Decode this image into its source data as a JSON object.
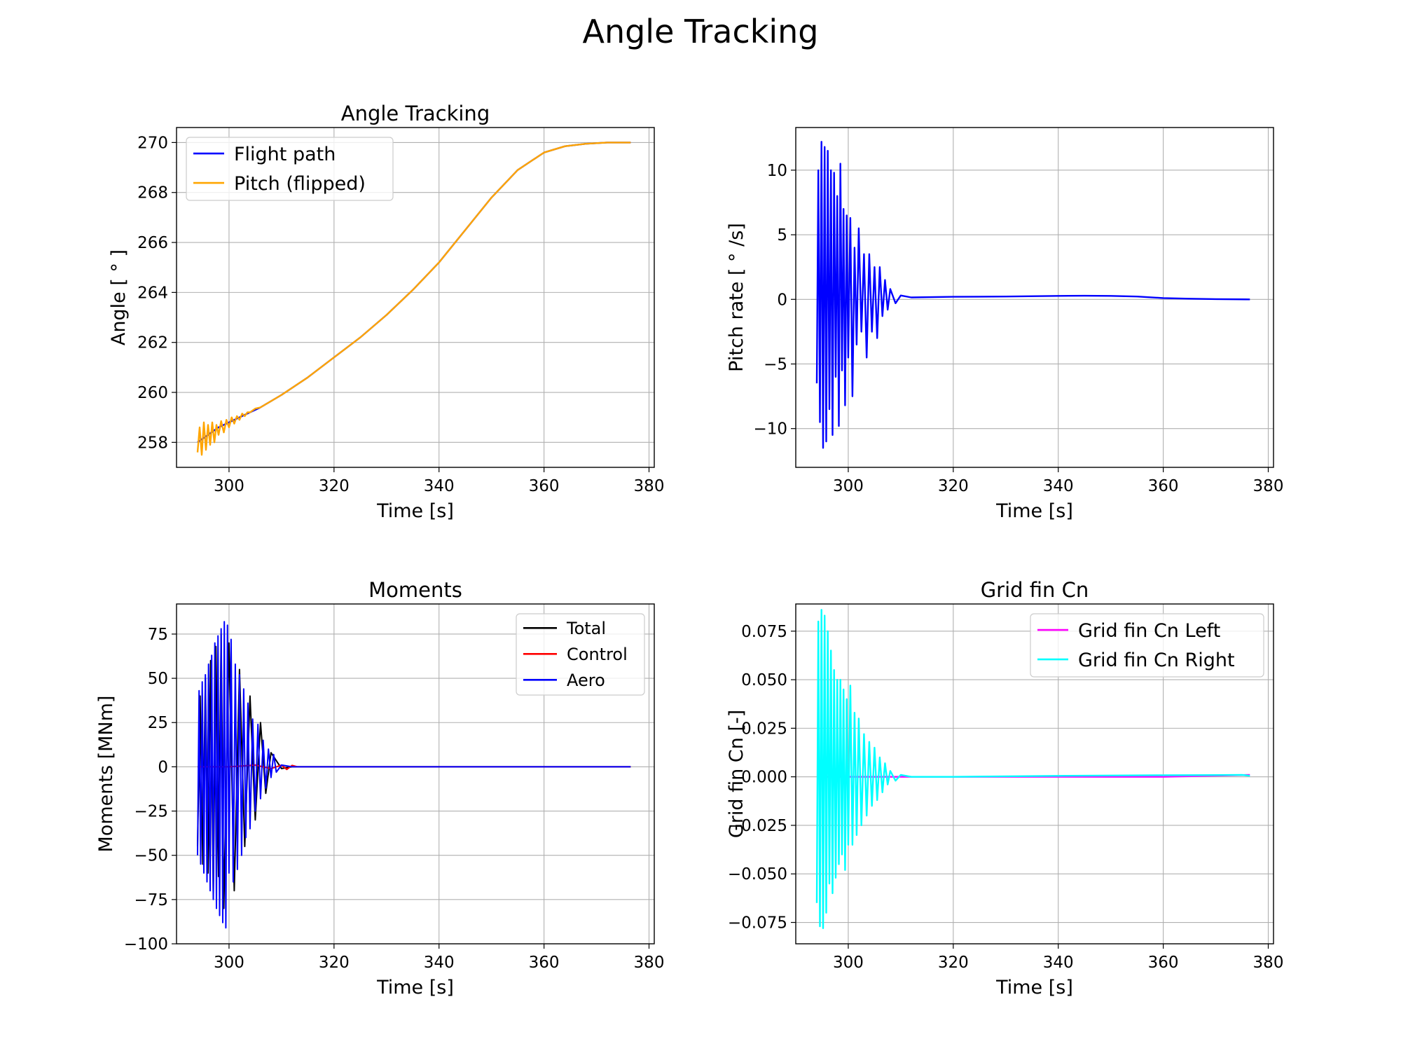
{
  "figure_title": "Angle Tracking",
  "chart_data": [
    {
      "type": "line",
      "title": "Angle Tracking",
      "xlabel": "Time [s]",
      "ylabel": "Angle [$^\\circ$]",
      "ylabel_display": "Angle [ ° ]",
      "xlim": [
        290,
        381
      ],
      "ylim": [
        257,
        270.6
      ],
      "xticks": [
        300,
        320,
        340,
        360,
        380
      ],
      "yticks": [
        258,
        260,
        262,
        264,
        266,
        268,
        270
      ],
      "ytick_labels": [
        "258",
        "260",
        "262",
        "264",
        "266",
        "268",
        "270"
      ],
      "grid": true,
      "legend_position": "upper-left",
      "series": [
        {
          "name": "Flight path",
          "color": "#0000ff",
          "x": [
            294,
            296,
            298,
            300,
            303,
            306,
            310,
            315,
            320,
            325,
            330,
            335,
            340,
            345,
            350,
            355,
            360,
            364,
            368,
            372,
            376.5
          ],
          "y": [
            258.0,
            258.3,
            258.6,
            258.8,
            259.1,
            259.4,
            259.9,
            260.6,
            261.4,
            262.2,
            263.1,
            264.1,
            265.2,
            266.5,
            267.8,
            268.9,
            269.6,
            269.85,
            269.95,
            270.0,
            270.0
          ]
        },
        {
          "name": "Pitch (flipped)",
          "color": "#ffa500",
          "x": [
            294,
            294.4,
            294.8,
            295.2,
            295.6,
            296,
            296.4,
            296.8,
            297.2,
            297.6,
            298,
            298.5,
            299,
            299.5,
            300,
            300.5,
            301,
            301.5,
            302,
            302.5,
            303,
            303.5,
            304,
            305,
            306,
            310,
            315,
            320,
            325,
            330,
            335,
            340,
            345,
            350,
            355,
            360,
            364,
            368,
            372,
            376.5
          ],
          "y": [
            257.6,
            258.6,
            257.5,
            258.8,
            257.7,
            258.7,
            257.9,
            258.8,
            258.0,
            258.7,
            258.3,
            258.85,
            258.4,
            258.9,
            258.6,
            259.0,
            258.75,
            259.05,
            258.9,
            259.15,
            259.05,
            259.2,
            259.2,
            259.35,
            259.4,
            259.9,
            260.6,
            261.4,
            262.2,
            263.1,
            264.1,
            265.2,
            266.5,
            267.8,
            268.9,
            269.6,
            269.85,
            269.95,
            270.0,
            270.0
          ]
        }
      ]
    },
    {
      "type": "line",
      "title": "",
      "xlabel": "Time [s]",
      "ylabel": "Pitch rate [$^\\circ$/s]",
      "ylabel_display": "Pitch rate [ ° /s]",
      "xlim": [
        290,
        381
      ],
      "ylim": [
        -13,
        13.3
      ],
      "xticks": [
        300,
        320,
        340,
        360,
        380
      ],
      "yticks": [
        -10,
        -5,
        0,
        5,
        10
      ],
      "ytick_labels": [
        "−10",
        "−5",
        "0",
        "5",
        "10"
      ],
      "grid": true,
      "series": [
        {
          "name": "",
          "color": "#0000ff",
          "x": [
            294,
            294.3,
            294.6,
            294.9,
            295.2,
            295.5,
            295.8,
            296.1,
            296.4,
            296.7,
            297.0,
            297.3,
            297.6,
            297.9,
            298.2,
            298.5,
            298.8,
            299.1,
            299.4,
            299.7,
            300.0,
            300.4,
            300.8,
            301.2,
            301.6,
            302.0,
            302.5,
            303.0,
            303.5,
            304.0,
            304.5,
            305.0,
            305.5,
            306,
            306.5,
            307,
            307.5,
            308,
            309,
            310,
            312,
            320,
            330,
            340,
            345,
            350,
            355,
            360,
            365,
            370,
            376.5
          ],
          "y": [
            -6.5,
            10,
            -9.5,
            12.2,
            -11.5,
            11.8,
            -11,
            11.5,
            -8.5,
            10,
            -10.5,
            9.8,
            -6,
            8,
            -9.8,
            10.5,
            -5.5,
            7,
            -8.2,
            6.5,
            -4.5,
            6.3,
            -7.5,
            4,
            -3.5,
            5.5,
            -2.5,
            3.5,
            -4.5,
            3.5,
            -2.5,
            2.5,
            -3,
            2.5,
            -1.3,
            1.5,
            -0.8,
            0.8,
            -0.3,
            0.3,
            0.15,
            0.2,
            0.22,
            0.27,
            0.28,
            0.27,
            0.22,
            0.1,
            0.05,
            0.02,
            0.0
          ]
        }
      ]
    },
    {
      "type": "line",
      "title": "Moments",
      "xlabel": "Time [s]",
      "ylabel": "Moments [MNm]",
      "xlim": [
        290,
        381
      ],
      "ylim": [
        -100,
        92
      ],
      "xticks": [
        300,
        320,
        340,
        360,
        380
      ],
      "yticks": [
        -100,
        -75,
        -50,
        -25,
        0,
        25,
        50,
        75
      ],
      "ytick_labels": [
        "−100",
        "−75",
        "−50",
        "−25",
        "0",
        "25",
        "50",
        "75"
      ],
      "grid": true,
      "legend_position": "upper-right",
      "series": [
        {
          "name": "Total",
          "color": "#000000",
          "x": [
            294,
            294.5,
            295,
            295.5,
            296,
            296.5,
            297,
            297.5,
            298,
            298.5,
            299,
            300,
            301,
            302,
            303,
            304,
            305,
            306,
            307,
            308,
            310,
            312,
            320,
            340,
            360,
            376.5
          ],
          "y": [
            -45,
            40,
            -55,
            50,
            -60,
            60,
            -72,
            68,
            -62,
            75,
            -80,
            70,
            -70,
            55,
            -45,
            40,
            -30,
            25,
            -15,
            8,
            -1,
            0,
            0,
            0,
            0,
            0
          ]
        },
        {
          "name": "Control",
          "color": "#ff0000",
          "x": [
            294,
            300,
            305,
            308,
            310,
            311,
            312,
            313,
            315,
            320,
            340,
            360,
            376.5
          ],
          "y": [
            0,
            0,
            1,
            -1,
            1,
            -1.5,
            0.8,
            0,
            0,
            0,
            0,
            0,
            0
          ]
        },
        {
          "name": "Aero",
          "color": "#0000ff",
          "x": [
            294,
            294.3,
            294.6,
            294.9,
            295.2,
            295.5,
            295.8,
            296.1,
            296.4,
            296.7,
            297.0,
            297.3,
            297.6,
            297.9,
            298.2,
            298.5,
            298.8,
            299.1,
            299.4,
            299.7,
            300.0,
            300.4,
            300.8,
            301.2,
            301.6,
            302.0,
            302.4,
            302.8,
            303.2,
            303.6,
            304.0,
            304.5,
            305,
            305.5,
            306,
            306.5,
            307,
            307.5,
            308,
            308.5,
            309,
            310,
            312,
            320,
            340,
            360,
            376.5
          ],
          "y": [
            -50,
            43,
            -55,
            48,
            -60,
            52,
            -65,
            58,
            -70,
            63,
            -75,
            70,
            -80,
            74,
            -84,
            78,
            -88,
            82,
            -91,
            80,
            -60,
            72,
            -65,
            58,
            -58,
            52,
            -50,
            44,
            -40,
            36,
            -35,
            27,
            -25,
            24,
            -18,
            15,
            -12,
            10,
            -6,
            7,
            -3,
            1,
            0,
            0,
            0,
            0,
            0
          ]
        }
      ]
    },
    {
      "type": "line",
      "title": "Grid fin Cn",
      "xlabel": "Time [s]",
      "ylabel": "Grid fin Cn [-]",
      "xlim": [
        290,
        381
      ],
      "ylim": [
        -0.086,
        0.089
      ],
      "xticks": [
        300,
        320,
        340,
        360,
        380
      ],
      "yticks": [
        -0.075,
        -0.05,
        -0.025,
        0.0,
        0.025,
        0.05,
        0.075
      ],
      "ytick_labels": [
        "−0.075",
        "−0.050",
        "−0.025",
        "0.000",
        "0.025",
        "0.050",
        "0.075"
      ],
      "grid": true,
      "legend_position": "upper-right",
      "series": [
        {
          "name": "Grid fin Cn Left",
          "color": "#ff00ff",
          "x": [
            294,
            300,
            310,
            320,
            340,
            360,
            376.5
          ],
          "y": [
            0.0,
            0.0,
            0.0,
            0.0,
            0.0,
            0.0,
            0.001
          ]
        },
        {
          "name": "Grid fin Cn Right",
          "color": "#00ffff",
          "x": [
            294,
            294.3,
            294.6,
            294.9,
            295.2,
            295.5,
            295.8,
            296.1,
            296.4,
            296.7,
            297.0,
            297.3,
            297.6,
            297.9,
            298.2,
            298.5,
            298.8,
            299.1,
            299.4,
            299.7,
            300.0,
            300.4,
            300.8,
            301.2,
            301.6,
            302.0,
            302.5,
            303.0,
            303.5,
            304.0,
            304.5,
            305.0,
            305.5,
            306,
            306.5,
            307,
            307.5,
            308,
            309,
            310,
            312,
            320,
            340,
            360,
            370,
            375,
            376.5
          ],
          "y": [
            -0.065,
            0.08,
            -0.077,
            0.086,
            -0.078,
            0.083,
            -0.07,
            0.075,
            -0.055,
            0.065,
            -0.06,
            0.055,
            -0.052,
            0.05,
            -0.045,
            0.05,
            -0.04,
            0.045,
            -0.048,
            0.04,
            -0.035,
            0.047,
            -0.035,
            0.033,
            -0.03,
            0.03,
            -0.025,
            0.022,
            -0.02,
            0.018,
            -0.015,
            0.015,
            -0.012,
            0.01,
            -0.008,
            0.007,
            -0.004,
            0.003,
            -0.002,
            0.001,
            0.0,
            0.0,
            0.0005,
            0.0008,
            0.0009,
            0.001,
            0.0005
          ]
        }
      ]
    }
  ]
}
